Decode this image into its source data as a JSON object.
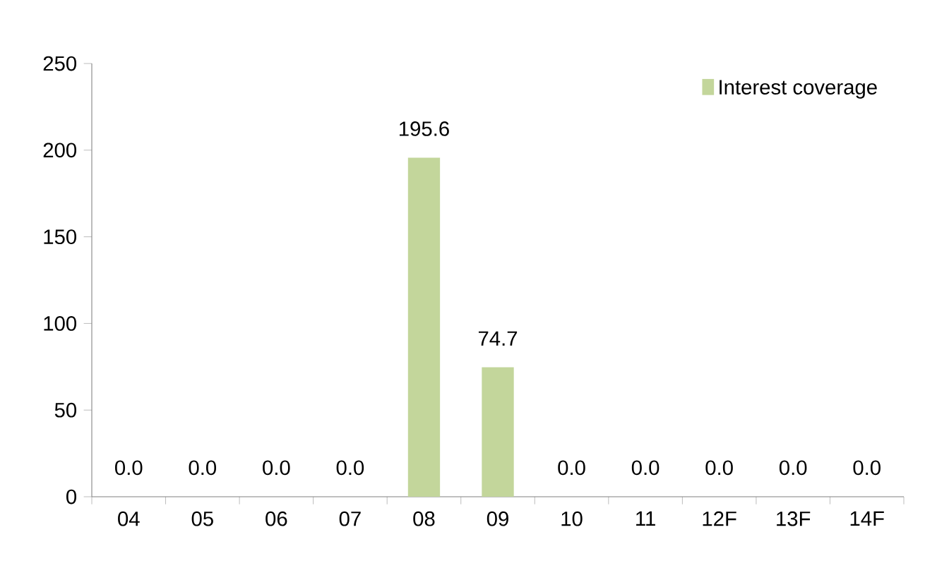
{
  "chart_data": {
    "type": "bar",
    "categories": [
      "04",
      "05",
      "06",
      "07",
      "08",
      "09",
      "10",
      "11",
      "12F",
      "13F",
      "14F"
    ],
    "series": [
      {
        "name": "Interest coverage",
        "color": "#c3d69b",
        "values": [
          0,
          0,
          0,
          0,
          195.6,
          74.7,
          0,
          0,
          0,
          0,
          0
        ],
        "value_labels": [
          "0.0",
          "0.0",
          "0.0",
          "0.0",
          "195.6",
          "74.7",
          "0.0",
          "0.0",
          "0.0",
          "0.0",
          "0.0"
        ]
      }
    ],
    "ylim": [
      0,
      250
    ],
    "yticks": [
      0,
      50,
      100,
      150,
      200,
      250
    ],
    "grid": false,
    "legend": "top right"
  }
}
